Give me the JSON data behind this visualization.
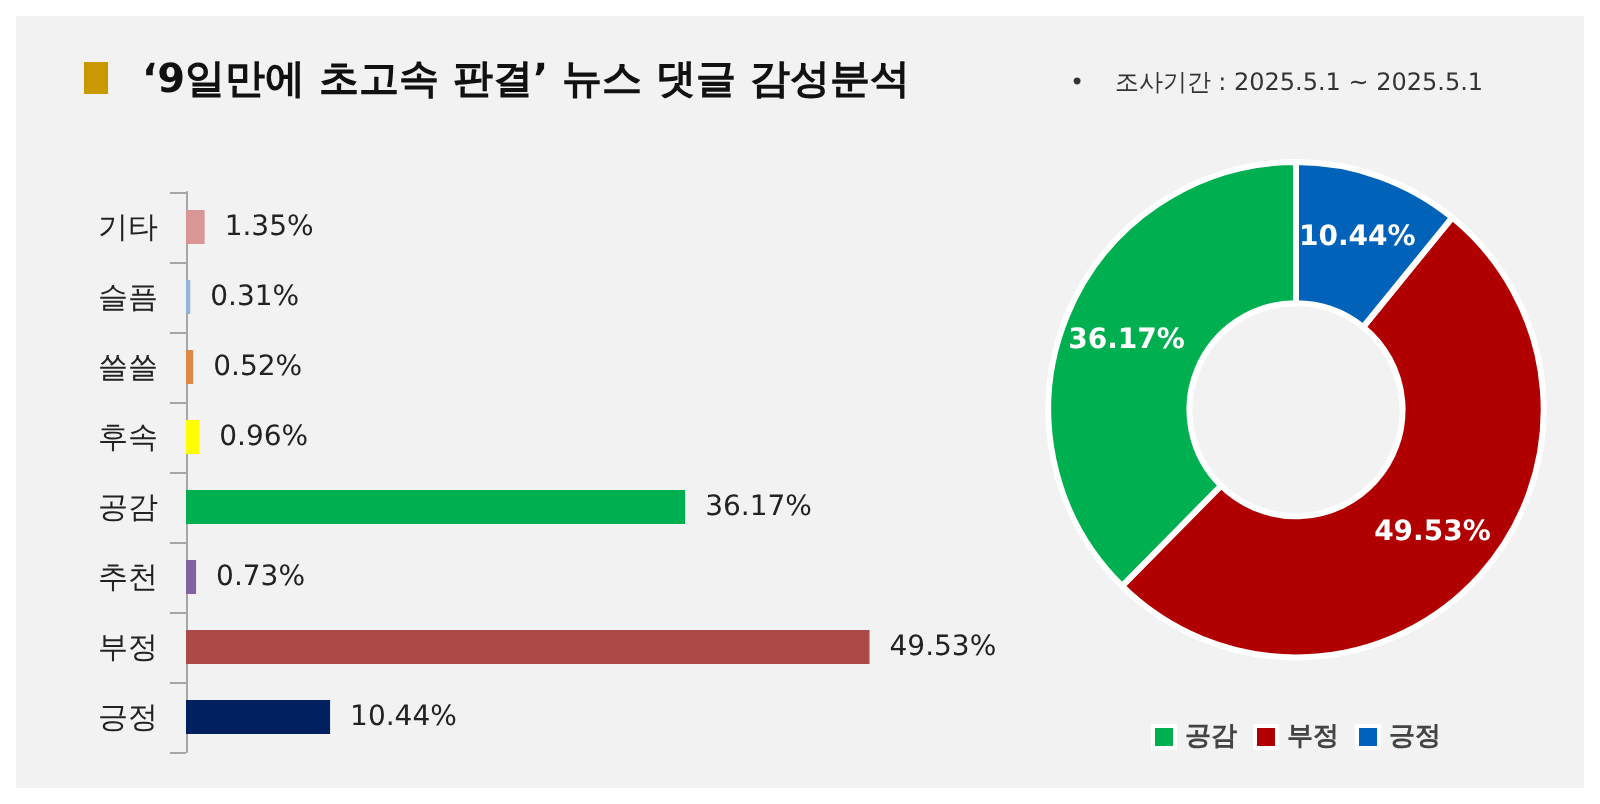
{
  "chart_data": [
    {
      "type": "bar",
      "orientation": "horizontal",
      "title": "‘9일만에 초고속 판결’ 뉴스 댓글 감성분석",
      "categories": [
        "기타",
        "슬픔",
        "쓸쓸",
        "후속",
        "공감",
        "추천",
        "부정",
        "긍정"
      ],
      "values": [
        1.35,
        0.31,
        0.52,
        0.96,
        36.17,
        0.73,
        49.53,
        10.44
      ],
      "colors": [
        "#d99694",
        "#95b3d7",
        "#e0884a",
        "#ffff00",
        "#00b050",
        "#8064a2",
        "#ab4a47",
        "#002060"
      ],
      "value_labels": [
        "1.35%",
        "0.31%",
        "0.52%",
        "0.96%",
        "36.17%",
        "0.73%",
        "49.53%",
        "10.44%"
      ]
    },
    {
      "type": "donut",
      "legend": "bottom",
      "subtitle": "•    조사기간 : 2025.5.1 ~ 2025.5.1",
      "categories": [
        "공감",
        "부정",
        "긍정"
      ],
      "values": [
        36.17,
        49.53,
        10.44
      ],
      "colors": [
        "#00b050",
        "#b00000",
        "#0062b8"
      ],
      "value_labels": [
        "36.17%",
        "49.53%",
        "10.44%"
      ]
    }
  ]
}
